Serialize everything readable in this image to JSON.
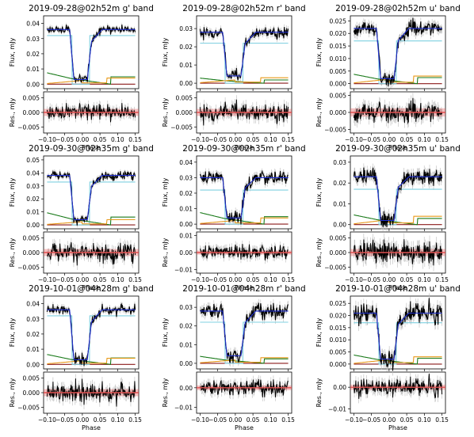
{
  "chart_data": [
    {
      "type": "line",
      "title": "2019-09-28@02h52m g' band",
      "xlabel": "Phase",
      "ylabel": "Flux, mJy",
      "res_ylabel": "Res., mJy",
      "xlim": [
        -0.11,
        0.16
      ],
      "xticks": [
        -0.1,
        -0.05,
        0.0,
        0.05,
        0.1,
        0.15
      ],
      "ylim": [
        -0.003,
        0.045
      ],
      "yticks": [
        0.0,
        0.01,
        0.02,
        0.03,
        0.04
      ],
      "res_ylim": [
        -0.007,
        0.007
      ],
      "res_yticks": [
        -0.005,
        0.0,
        0.005
      ],
      "out_of_eclipse_flux": 0.036,
      "in_eclipse_flux": 0.003,
      "ingress_phase": -0.03,
      "egress_phase": 0.02,
      "noise": 0.0012,
      "white_dwarf_flux": 0.032,
      "disc_start_flux": 0.008,
      "spot_flux": 0.004,
      "donor_flux": 0.0,
      "series": [
        {
          "name": "data",
          "color": "#000000"
        },
        {
          "name": "model",
          "color": "#1f2fd0"
        },
        {
          "name": "white dwarf",
          "color": "#7fd0e0"
        },
        {
          "name": "disc",
          "color": "#1a7a1a"
        },
        {
          "name": "bright spot",
          "color": "#e89a1a"
        },
        {
          "name": "donor",
          "color": "#8b1a1a"
        },
        {
          "name": "residual model",
          "color": "#e05050"
        }
      ]
    },
    {
      "type": "line",
      "title": "2019-09-28@02h52m r' band",
      "xlabel": "Phase",
      "ylabel": "Flux, mJy",
      "res_ylabel": "Res., mJy",
      "xlim": [
        -0.11,
        0.16
      ],
      "xticks": [
        -0.1,
        -0.05,
        0.0,
        0.05,
        0.1,
        0.15
      ],
      "ylim": [
        -0.003,
        0.037
      ],
      "yticks": [
        0.0,
        0.01,
        0.02,
        0.03
      ],
      "res_ylim": [
        -0.007,
        0.007
      ],
      "res_yticks": [
        -0.005,
        0.0,
        0.005
      ],
      "out_of_eclipse_flux": 0.028,
      "in_eclipse_flux": 0.004,
      "ingress_phase": -0.03,
      "egress_phase": 0.022,
      "noise": 0.0015,
      "white_dwarf_flux": 0.022,
      "disc_start_flux": 0.003,
      "spot_flux": 0.003,
      "donor_flux": 0.0,
      "series": [
        {
          "name": "data",
          "color": "#000000"
        },
        {
          "name": "model",
          "color": "#1f2fd0"
        },
        {
          "name": "white dwarf",
          "color": "#7fd0e0"
        },
        {
          "name": "disc",
          "color": "#1a7a1a"
        },
        {
          "name": "bright spot",
          "color": "#e89a1a"
        },
        {
          "name": "donor",
          "color": "#8b1a1a"
        },
        {
          "name": "residual model",
          "color": "#e05050"
        }
      ]
    },
    {
      "type": "line",
      "title": "2019-09-28@02h52m u' band",
      "xlabel": "Phase",
      "ylabel": "Flux, mJy",
      "res_ylabel": "Res., mJy",
      "xlim": [
        -0.11,
        0.16
      ],
      "xticks": [
        -0.1,
        -0.05,
        0.0,
        0.05,
        0.1,
        0.15
      ],
      "ylim": [
        -0.002,
        0.027
      ],
      "yticks": [
        0.0,
        0.005,
        0.01,
        0.015,
        0.02,
        0.025
      ],
      "res_ylim": [
        -0.006,
        0.006
      ],
      "res_yticks": [
        -0.005,
        0.0,
        0.005
      ],
      "out_of_eclipse_flux": 0.022,
      "in_eclipse_flux": 0.002,
      "ingress_phase": -0.03,
      "egress_phase": 0.02,
      "noise": 0.0015,
      "white_dwarf_flux": 0.017,
      "disc_start_flux": 0.004,
      "spot_flux": 0.003,
      "donor_flux": 0.0,
      "series": [
        {
          "name": "data",
          "color": "#000000"
        },
        {
          "name": "model",
          "color": "#1f2fd0"
        },
        {
          "name": "white dwarf",
          "color": "#7fd0e0"
        },
        {
          "name": "disc",
          "color": "#1a7a1a"
        },
        {
          "name": "bright spot",
          "color": "#e89a1a"
        },
        {
          "name": "donor",
          "color": "#8b1a1a"
        },
        {
          "name": "residual model",
          "color": "#e05050"
        }
      ]
    },
    {
      "type": "line",
      "title": "2019-09-30@02h35m g' band",
      "xlabel": "Phase",
      "ylabel": "Flux, mJy",
      "res_ylabel": "Res., mJy",
      "xlim": [
        -0.11,
        0.16
      ],
      "xticks": [
        -0.1,
        -0.05,
        0.0,
        0.05,
        0.1,
        0.15
      ],
      "ylim": [
        -0.003,
        0.053
      ],
      "yticks": [
        0.0,
        0.01,
        0.02,
        0.03,
        0.04,
        0.05
      ],
      "res_ylim": [
        -0.007,
        0.007
      ],
      "res_yticks": [
        -0.005,
        0.0,
        0.005
      ],
      "out_of_eclipse_flux": 0.038,
      "in_eclipse_flux": 0.004,
      "ingress_phase": -0.03,
      "egress_phase": 0.02,
      "noise": 0.0015,
      "white_dwarf_flux": 0.033,
      "disc_start_flux": 0.01,
      "spot_flux": 0.004,
      "donor_flux": 0.0,
      "series": [
        {
          "name": "data",
          "color": "#000000"
        },
        {
          "name": "model",
          "color": "#1f2fd0"
        },
        {
          "name": "white dwarf",
          "color": "#7fd0e0"
        },
        {
          "name": "disc",
          "color": "#1a7a1a"
        },
        {
          "name": "bright spot",
          "color": "#e89a1a"
        },
        {
          "name": "donor",
          "color": "#8b1a1a"
        },
        {
          "name": "residual model",
          "color": "#e05050"
        }
      ]
    },
    {
      "type": "line",
      "title": "2019-09-30@02h35m r' band",
      "xlabel": "Phase",
      "ylabel": "Flux, mJy",
      "res_ylabel": "Res., mJy",
      "xlim": [
        -0.11,
        0.16
      ],
      "xticks": [
        -0.1,
        -0.05,
        0.0,
        0.05,
        0.1,
        0.15
      ],
      "ylim": [
        -0.003,
        0.044
      ],
      "yticks": [
        0.0,
        0.01,
        0.02,
        0.03,
        0.04
      ],
      "res_ylim": [
        -0.012,
        0.012
      ],
      "res_yticks": [
        -0.01,
        0.0,
        0.01
      ],
      "out_of_eclipse_flux": 0.03,
      "in_eclipse_flux": 0.004,
      "ingress_phase": -0.03,
      "egress_phase": 0.022,
      "noise": 0.002,
      "white_dwarf_flux": 0.022,
      "disc_start_flux": 0.008,
      "spot_flux": 0.004,
      "donor_flux": 0.0,
      "series": [
        {
          "name": "data",
          "color": "#000000"
        },
        {
          "name": "model",
          "color": "#1f2fd0"
        },
        {
          "name": "white dwarf",
          "color": "#7fd0e0"
        },
        {
          "name": "disc",
          "color": "#1a7a1a"
        },
        {
          "name": "bright spot",
          "color": "#e89a1a"
        },
        {
          "name": "donor",
          "color": "#8b1a1a"
        },
        {
          "name": "residual model",
          "color": "#e05050"
        }
      ]
    },
    {
      "type": "line",
      "title": "2019-09-30@02h35m u' band",
      "xlabel": "Phase",
      "ylabel": "Flux, mJy",
      "res_ylabel": "Res., mJy",
      "xlim": [
        -0.11,
        0.16
      ],
      "xticks": [
        -0.1,
        -0.05,
        0.0,
        0.05,
        0.1,
        0.15
      ],
      "ylim": [
        -0.002,
        0.033
      ],
      "yticks": [
        0.0,
        0.01,
        0.02,
        0.03
      ],
      "res_ylim": [
        -0.007,
        0.007
      ],
      "res_yticks": [
        -0.005,
        0.0,
        0.005
      ],
      "out_of_eclipse_flux": 0.023,
      "in_eclipse_flux": 0.002,
      "ingress_phase": -0.03,
      "egress_phase": 0.02,
      "noise": 0.002,
      "white_dwarf_flux": 0.017,
      "disc_start_flux": 0.005,
      "spot_flux": 0.004,
      "donor_flux": 0.0,
      "series": [
        {
          "name": "data",
          "color": "#000000"
        },
        {
          "name": "model",
          "color": "#1f2fd0"
        },
        {
          "name": "white dwarf",
          "color": "#7fd0e0"
        },
        {
          "name": "disc",
          "color": "#1a7a1a"
        },
        {
          "name": "bright spot",
          "color": "#e89a1a"
        },
        {
          "name": "donor",
          "color": "#8b1a1a"
        },
        {
          "name": "residual model",
          "color": "#e05050"
        }
      ]
    },
    {
      "type": "line",
      "title": "2019-10-01@04h28m g' band",
      "xlabel": "Phase",
      "ylabel": "Flux, mJy",
      "res_ylabel": "Res., mJy",
      "xlim": [
        -0.11,
        0.16
      ],
      "xticks": [
        -0.1,
        -0.05,
        0.0,
        0.05,
        0.1,
        0.15
      ],
      "ylim": [
        -0.003,
        0.045
      ],
      "yticks": [
        0.0,
        0.01,
        0.02,
        0.03,
        0.04
      ],
      "res_ylim": [
        -0.007,
        0.007
      ],
      "res_yticks": [
        -0.005,
        0.0,
        0.005
      ],
      "out_of_eclipse_flux": 0.036,
      "in_eclipse_flux": 0.003,
      "ingress_phase": -0.03,
      "egress_phase": 0.02,
      "noise": 0.0015,
      "white_dwarf_flux": 0.032,
      "disc_start_flux": 0.007,
      "spot_flux": 0.004,
      "donor_flux": 0.0,
      "series": [
        {
          "name": "data",
          "color": "#000000"
        },
        {
          "name": "model",
          "color": "#1f2fd0"
        },
        {
          "name": "white dwarf",
          "color": "#7fd0e0"
        },
        {
          "name": "disc",
          "color": "#1a7a1a"
        },
        {
          "name": "bright spot",
          "color": "#e89a1a"
        },
        {
          "name": "donor",
          "color": "#8b1a1a"
        },
        {
          "name": "residual model",
          "color": "#e05050"
        }
      ]
    },
    {
      "type": "line",
      "title": "2019-10-01@04h28m r' band",
      "xlabel": "Phase",
      "ylabel": "Flux, mJy",
      "res_ylabel": "Res., mJy",
      "xlim": [
        -0.11,
        0.16
      ],
      "xticks": [
        -0.1,
        -0.05,
        0.0,
        0.05,
        0.1,
        0.15
      ],
      "ylim": [
        -0.003,
        0.036
      ],
      "yticks": [
        0.0,
        0.01,
        0.02,
        0.03
      ],
      "res_ylim": [
        -0.013,
        0.008
      ],
      "res_yticks": [
        -0.01,
        0.0
      ],
      "out_of_eclipse_flux": 0.028,
      "in_eclipse_flux": 0.004,
      "ingress_phase": -0.03,
      "egress_phase": 0.022,
      "noise": 0.002,
      "white_dwarf_flux": 0.022,
      "disc_start_flux": 0.004,
      "spot_flux": 0.003,
      "donor_flux": 0.0,
      "series": [
        {
          "name": "data",
          "color": "#000000"
        },
        {
          "name": "model",
          "color": "#1f2fd0"
        },
        {
          "name": "white dwarf",
          "color": "#7fd0e0"
        },
        {
          "name": "disc",
          "color": "#1a7a1a"
        },
        {
          "name": "bright spot",
          "color": "#e89a1a"
        },
        {
          "name": "donor",
          "color": "#8b1a1a"
        },
        {
          "name": "residual model",
          "color": "#e05050"
        }
      ]
    },
    {
      "type": "line",
      "title": "2019-10-01@04h28m u' band",
      "xlabel": "Phase",
      "ylabel": "Flux, mJy",
      "res_ylabel": "Res., mJy",
      "xlim": [
        -0.11,
        0.16
      ],
      "xticks": [
        -0.1,
        -0.05,
        0.0,
        0.05,
        0.1,
        0.15
      ],
      "ylim": [
        -0.002,
        0.028
      ],
      "yticks": [
        0.0,
        0.005,
        0.01,
        0.015,
        0.02,
        0.025
      ],
      "res_ylim": [
        -0.012,
        0.007
      ],
      "res_yticks": [
        -0.01,
        0.0
      ],
      "out_of_eclipse_flux": 0.021,
      "in_eclipse_flux": 0.002,
      "ingress_phase": -0.03,
      "egress_phase": 0.02,
      "noise": 0.002,
      "white_dwarf_flux": 0.017,
      "disc_start_flux": 0.004,
      "spot_flux": 0.003,
      "donor_flux": 0.0,
      "series": [
        {
          "name": "data",
          "color": "#000000"
        },
        {
          "name": "model",
          "color": "#1f2fd0"
        },
        {
          "name": "white dwarf",
          "color": "#7fd0e0"
        },
        {
          "name": "disc",
          "color": "#1a7a1a"
        },
        {
          "name": "bright spot",
          "color": "#e89a1a"
        },
        {
          "name": "donor",
          "color": "#8b1a1a"
        },
        {
          "name": "residual model",
          "color": "#e05050"
        }
      ]
    }
  ]
}
